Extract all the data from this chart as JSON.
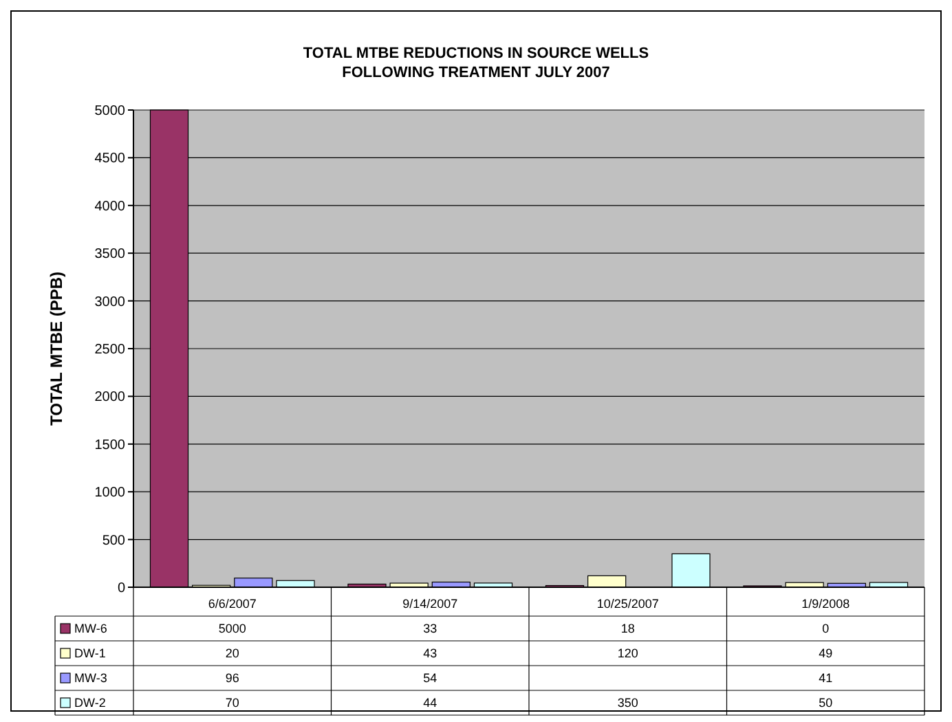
{
  "chart_data": {
    "type": "bar",
    "title": "TOTAL MTBE REDUCTIONS IN SOURCE WELLS",
    "subtitle": "FOLLOWING TREATMENT JULY 2007",
    "ylabel": "TOTAL MTBE (PPB)",
    "categories": [
      "6/6/2007",
      "9/14/2007",
      "10/25/2007",
      "1/9/2008"
    ],
    "series": [
      {
        "name": "MW-6",
        "color": "#993366",
        "values": [
          5000,
          33,
          18,
          0
        ]
      },
      {
        "name": "DW-1",
        "color": "#ffffcc",
        "values": [
          20,
          43,
          120,
          49
        ]
      },
      {
        "name": "MW-3",
        "color": "#9999ff",
        "values": [
          96,
          54,
          null,
          41
        ]
      },
      {
        "name": "DW-2",
        "color": "#ccffff",
        "values": [
          70,
          44,
          350,
          50
        ]
      }
    ],
    "ylim": [
      0,
      5000
    ],
    "yticks": [
      0,
      500,
      1000,
      1500,
      2000,
      2500,
      3000,
      3500,
      4000,
      4500,
      5000
    ],
    "grid": "y",
    "legend": "bottom",
    "data_labels": true
  }
}
